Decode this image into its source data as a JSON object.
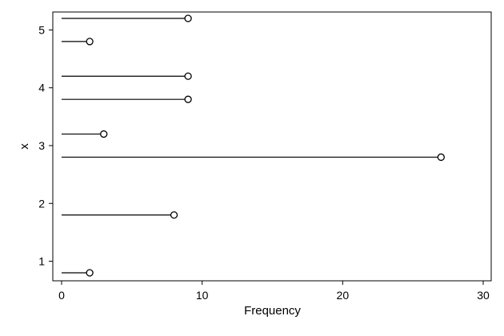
{
  "chart_data": {
    "type": "dot-stem",
    "xlabel": "Frequency",
    "ylabel": "x",
    "xlim": [
      0,
      30
    ],
    "ylim": [
      0.7,
      5.35
    ],
    "xticks": [
      0,
      10,
      20,
      30
    ],
    "yticks": [
      1,
      2,
      3,
      4,
      5
    ],
    "xtick_labels": [
      "0",
      "10",
      "20",
      "30"
    ],
    "ytick_labels": [
      "1",
      "2",
      "3",
      "4",
      "5"
    ],
    "grid": false,
    "legend": "none",
    "series": [
      {
        "points": [
          {
            "y": 0.8,
            "x": 2
          },
          {
            "y": 1.8,
            "x": 8
          },
          {
            "y": 2.8,
            "x": 27
          },
          {
            "y": 3.2,
            "x": 3
          },
          {
            "y": 3.8,
            "x": 9
          },
          {
            "y": 4.2,
            "x": 9
          },
          {
            "y": 4.8,
            "x": 2
          },
          {
            "y": 5.2,
            "x": 9
          }
        ]
      }
    ],
    "colors": {
      "line": "#000000",
      "marker_fill": "#ffffff",
      "marker_stroke": "#000000",
      "frame": "#000000",
      "background": "#ffffff"
    }
  }
}
